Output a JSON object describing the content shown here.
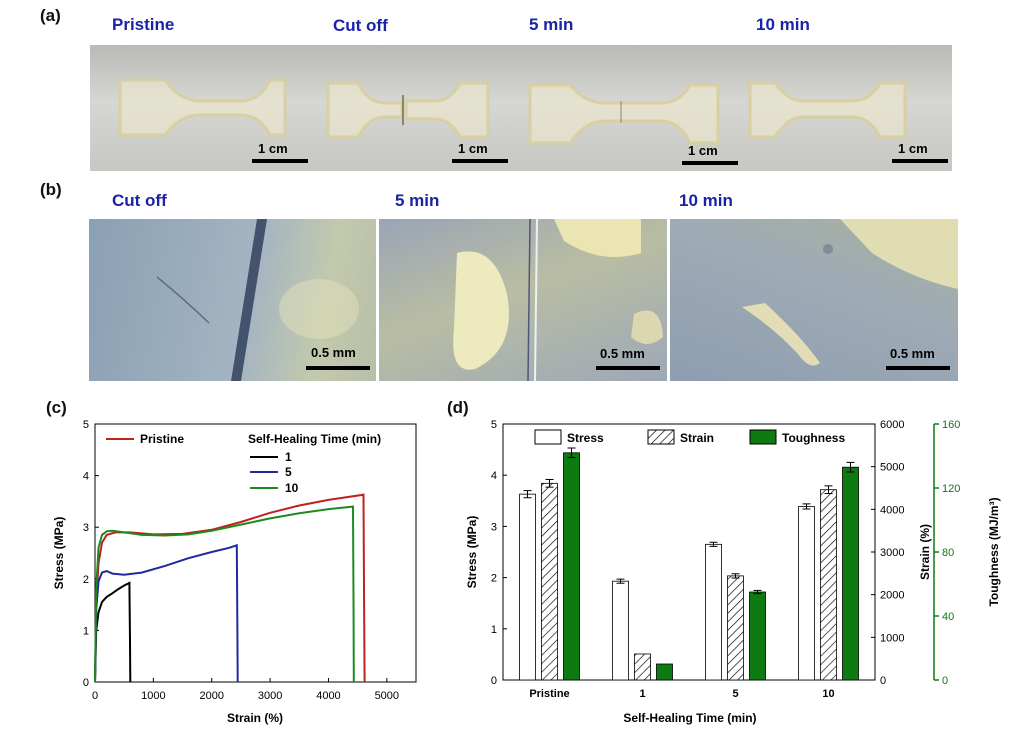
{
  "panel_a": {
    "letter": "(a)",
    "labels": [
      "Pristine",
      "Cut off",
      "5 min",
      "10 min"
    ],
    "scale_labels": [
      "1 cm",
      "1 cm",
      "1 cm",
      "1 cm"
    ]
  },
  "panel_b": {
    "letter": "(b)",
    "labels": [
      "Cut off",
      "5 min",
      "10 min"
    ],
    "scale_labels": [
      "0.5 mm",
      "0.5 mm",
      "0.5 mm"
    ]
  },
  "panel_c": {
    "letter": "(c)"
  },
  "panel_d": {
    "letter": "(d)"
  },
  "colors": {
    "pristine": "#c0201f",
    "t1": "#000000",
    "t5": "#1f2a9e",
    "t10": "#1e8a1e",
    "toughness_bar": "#0d7a12",
    "toughness_axis": "#0d7a12",
    "photo_label": "#1a22a8"
  },
  "chart_data": [
    {
      "type": "line",
      "xlabel": "Strain (%)",
      "ylabel": "Stress (MPa)",
      "xlim": [
        0,
        5500
      ],
      "ylim": [
        0,
        5
      ],
      "xticks": [
        "0",
        "1000",
        "2000",
        "3000",
        "4000",
        "5000"
      ],
      "yticks": [
        "0",
        "1",
        "2",
        "3",
        "4",
        "5"
      ],
      "legend_title": "Self-Healing Time (min)",
      "series": [
        {
          "name": "Pristine",
          "color_key": "pristine",
          "x": [
            0,
            20,
            60,
            120,
            200,
            350,
            600,
            1000,
            1500,
            2000,
            2500,
            3000,
            3500,
            4000,
            4600,
            4610,
            4620
          ],
          "y": [
            0,
            1.5,
            2.3,
            2.7,
            2.85,
            2.9,
            2.9,
            2.86,
            2.87,
            2.95,
            3.1,
            3.28,
            3.42,
            3.53,
            3.63,
            1.5,
            0
          ]
        },
        {
          "name": "1",
          "color_key": "t1",
          "x": [
            0,
            20,
            60,
            120,
            200,
            300,
            400,
            500,
            590,
            600,
            605
          ],
          "y": [
            0,
            1.0,
            1.35,
            1.55,
            1.65,
            1.72,
            1.8,
            1.87,
            1.92,
            0.8,
            0
          ]
        },
        {
          "name": "5",
          "color_key": "t5",
          "x": [
            0,
            20,
            60,
            120,
            200,
            300,
            500,
            800,
            1200,
            1600,
            2000,
            2300,
            2430,
            2440,
            2445
          ],
          "y": [
            0,
            1.4,
            1.95,
            2.12,
            2.15,
            2.1,
            2.08,
            2.12,
            2.25,
            2.4,
            2.52,
            2.6,
            2.65,
            1.0,
            0
          ]
        },
        {
          "name": "10",
          "color_key": "t10",
          "x": [
            0,
            20,
            60,
            120,
            200,
            300,
            500,
            800,
            1200,
            1600,
            2000,
            2500,
            3000,
            3500,
            4000,
            4420,
            4430,
            4435
          ],
          "y": [
            0,
            1.8,
            2.6,
            2.85,
            2.92,
            2.93,
            2.9,
            2.85,
            2.84,
            2.86,
            2.93,
            3.05,
            3.17,
            3.27,
            3.35,
            3.4,
            1.2,
            0
          ]
        }
      ]
    },
    {
      "type": "bar",
      "xlabel": "Self-Healing Time (min)",
      "ylabel": "Stress (MPa)",
      "ylabel_right1": "Strain (%)",
      "ylabel_right2": "Toughness (MJ/m³)",
      "categories": [
        "Pristine",
        "1",
        "5",
        "10"
      ],
      "ylim": [
        0,
        5
      ],
      "ylim_strain": [
        0,
        6000
      ],
      "ylim_toughness": [
        0,
        160
      ],
      "yticks": [
        "0",
        "1",
        "2",
        "3",
        "4",
        "5"
      ],
      "yticks_strain": [
        "0",
        "1000",
        "2000",
        "3000",
        "4000",
        "5000",
        "6000"
      ],
      "yticks_toughness": [
        "0",
        "40",
        "80",
        "120",
        "160"
      ],
      "series": [
        {
          "name": "Stress",
          "axis": "stress",
          "values": [
            3.63,
            1.93,
            2.65,
            3.39
          ],
          "errors": [
            0.07,
            0.04,
            0.04,
            0.05
          ]
        },
        {
          "name": "Strain",
          "axis": "strain",
          "values": [
            4610,
            610,
            2440,
            4460
          ],
          "errors": [
            90,
            0,
            50,
            90
          ]
        },
        {
          "name": "Toughness",
          "axis": "toughness",
          "values": [
            142,
            10,
            55,
            133
          ],
          "errors": [
            3,
            0,
            1,
            3
          ]
        }
      ]
    }
  ]
}
